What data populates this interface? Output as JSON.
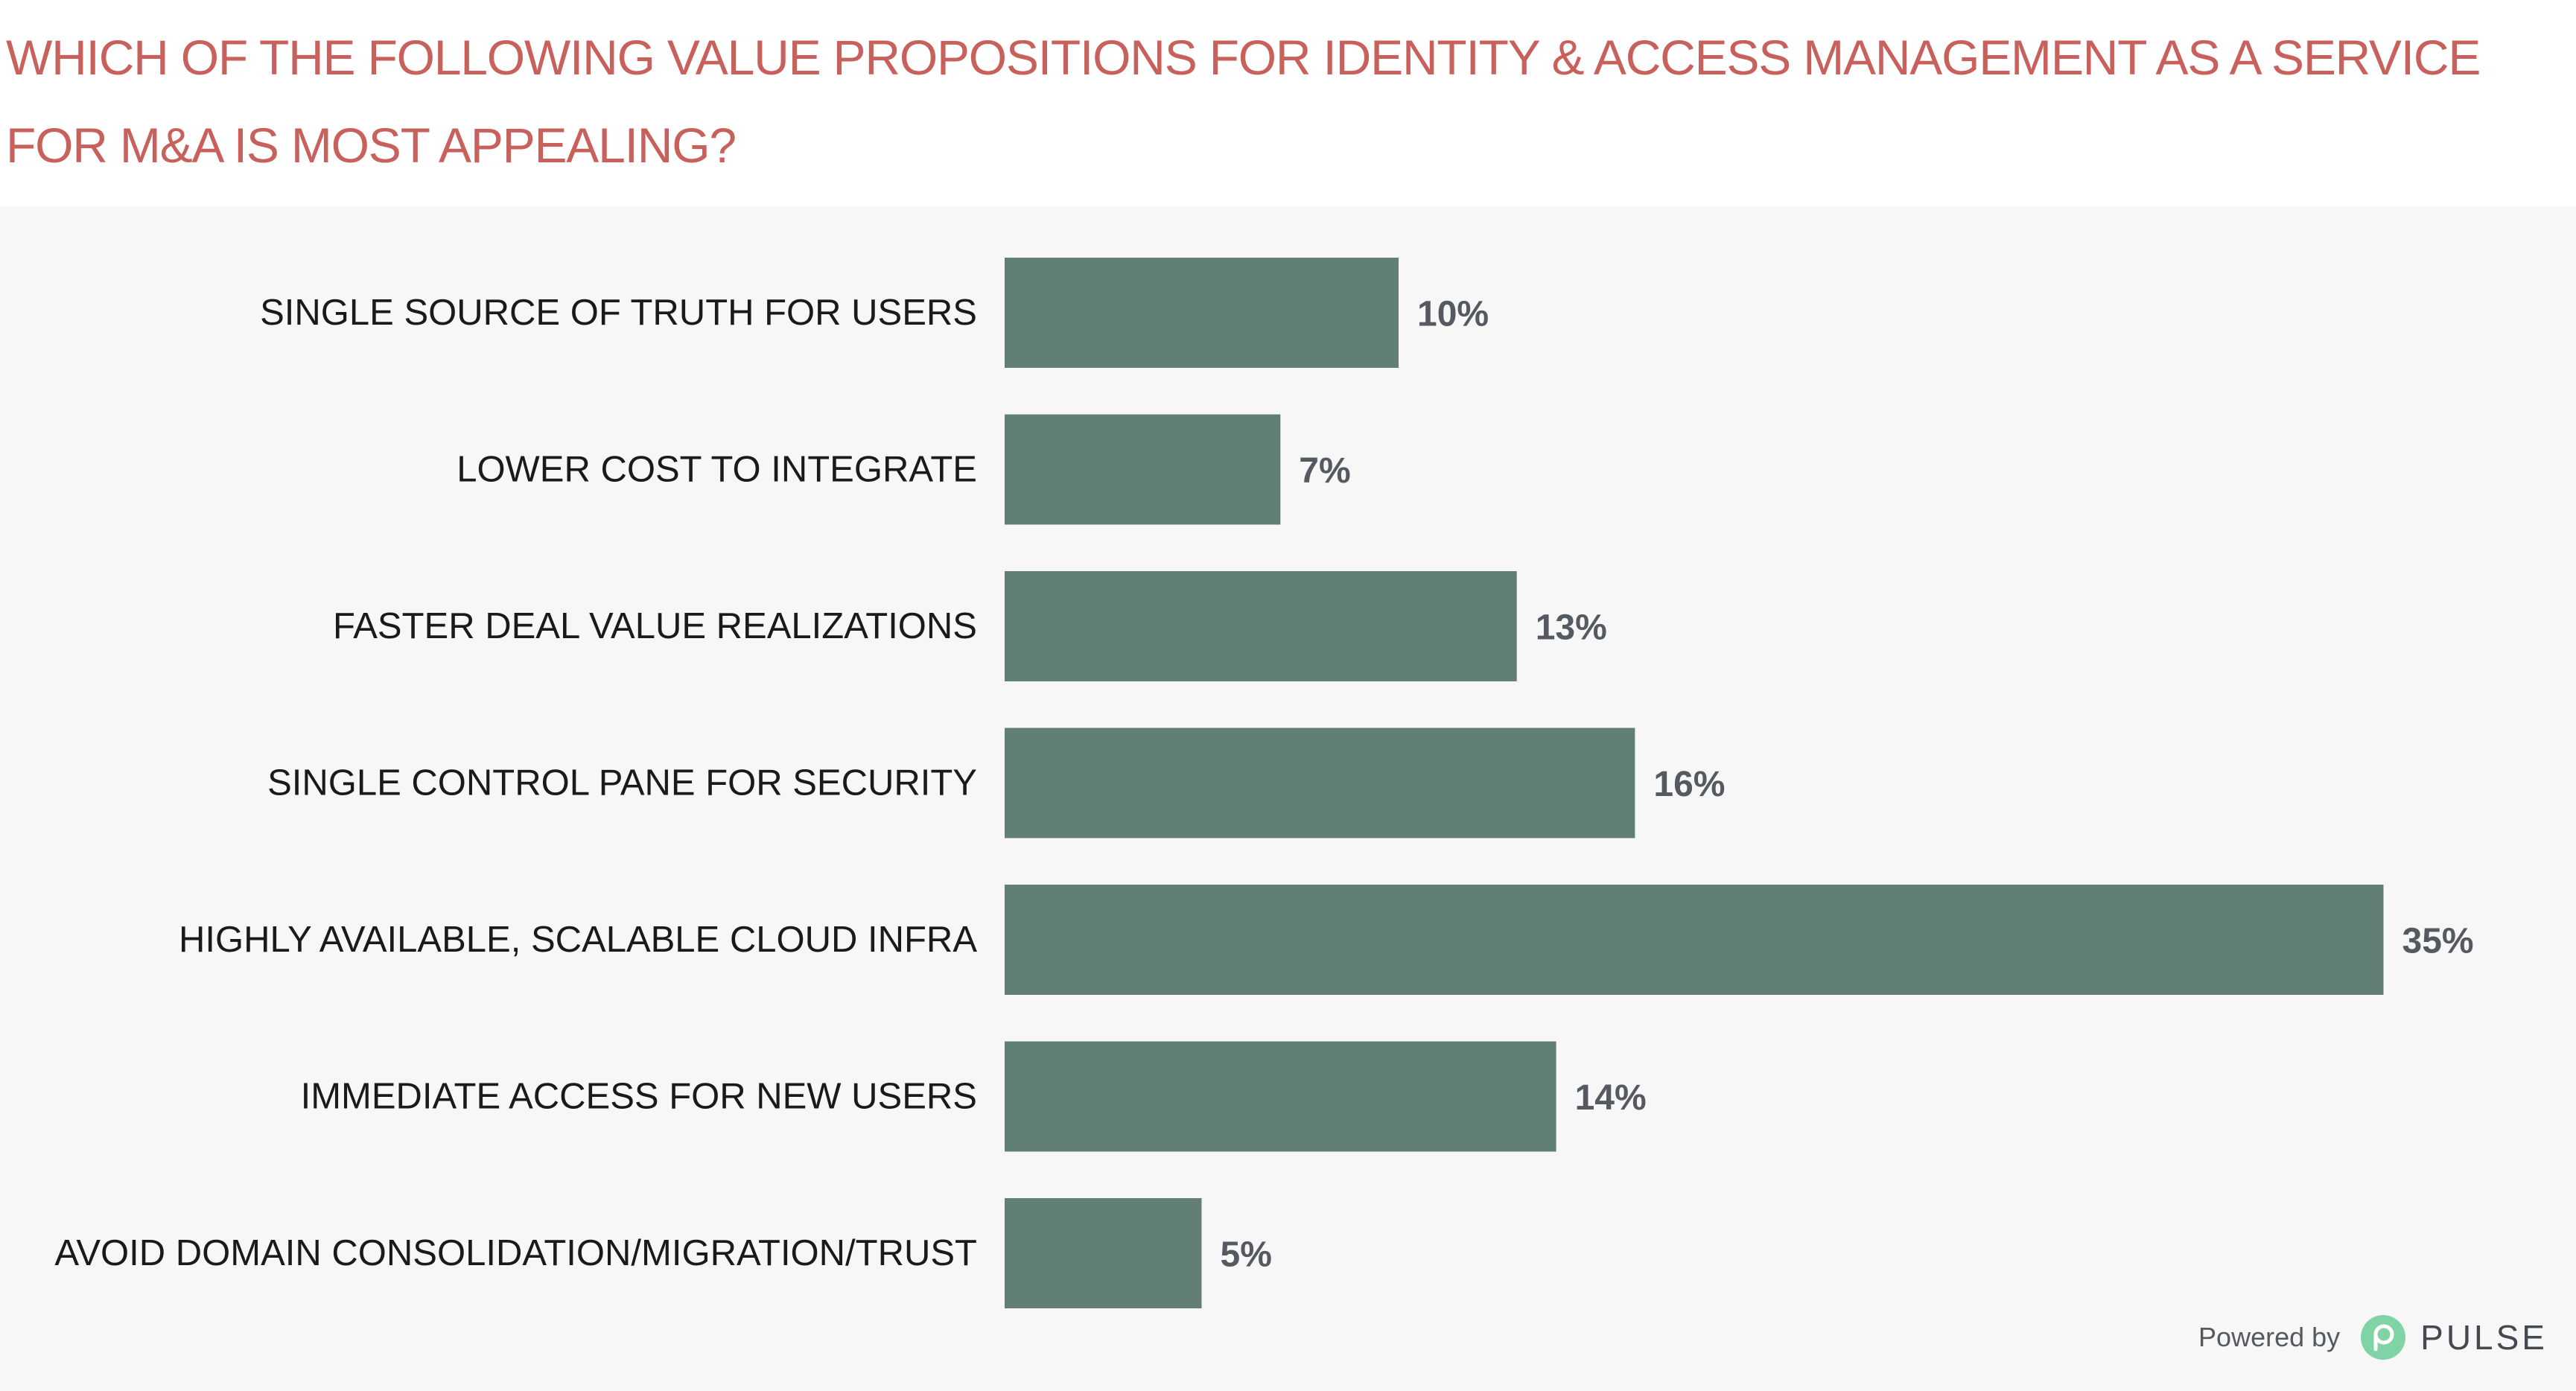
{
  "header": {
    "title": "WHICH OF THE FOLLOWING VALUE PROPOSITIONS FOR IDENTITY & ACCESS MANAGEMENT AS A SERVICE FOR M&A IS MOST APPEALING?"
  },
  "chart_data": {
    "type": "bar",
    "orientation": "horizontal",
    "categories": [
      "SINGLE SOURCE OF TRUTH FOR USERS",
      "LOWER COST TO INTEGRATE",
      "FASTER DEAL VALUE REALIZATIONS",
      "SINGLE CONTROL PANE FOR SECURITY",
      "HIGHLY AVAILABLE, SCALABLE CLOUD INFRA",
      "IMMEDIATE ACCESS FOR NEW USERS",
      "AVOID DOMAIN CONSOLIDATION/MIGRATION/TRUST"
    ],
    "values": [
      10,
      7,
      13,
      16,
      35,
      14,
      5
    ],
    "data_labels": [
      "10%",
      "7%",
      "13%",
      "16%",
      "35%",
      "14%",
      "5%"
    ],
    "unit": "%",
    "bar_color": "#627f74",
    "grid": false,
    "legend": "none"
  },
  "footer": {
    "powered_by": "Powered by",
    "brand": "PULSE",
    "logo_icon": "pulse-logo-icon",
    "logo_color": "#7fd3a4"
  }
}
